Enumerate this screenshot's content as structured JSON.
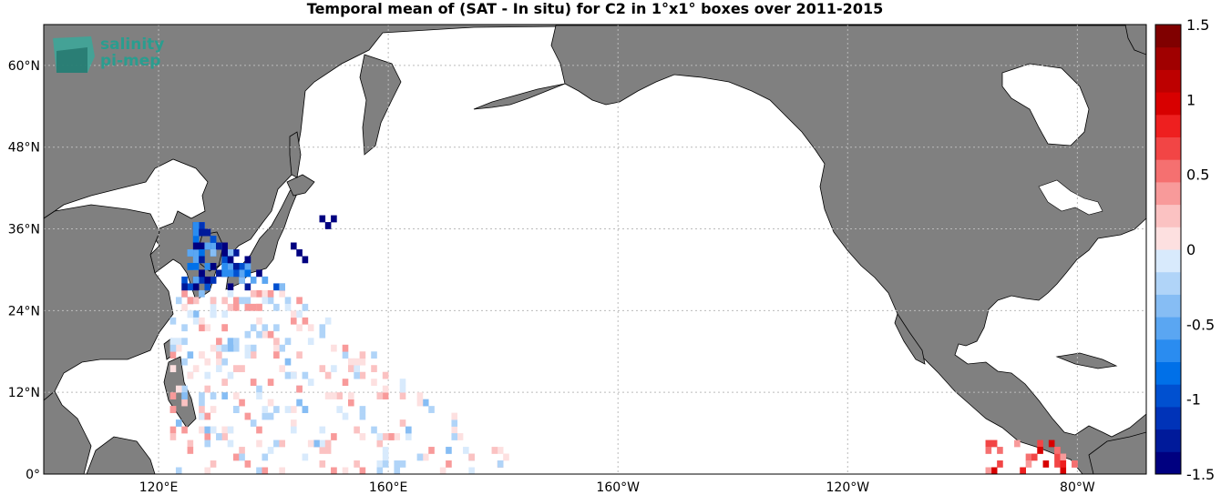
{
  "title": "Temporal mean of (SAT - In situ) for C2 in 1°x1° boxes over 2011-2015",
  "logo": {
    "line1": "salinity",
    "line2": "pi-mep"
  },
  "map": {
    "lon_ticks": [
      {
        "lon": 120,
        "label": "120°E"
      },
      {
        "lon": 160,
        "label": "160°E"
      },
      {
        "lon": 200,
        "label": "160°W"
      },
      {
        "lon": 240,
        "label": "120°W"
      },
      {
        "lon": 280,
        "label": "80°W"
      }
    ],
    "lat_ticks": [
      {
        "lat": 0,
        "label": "0°"
      },
      {
        "lat": 12,
        "label": "12°N"
      },
      {
        "lat": 24,
        "label": "24°N"
      },
      {
        "lat": 36,
        "label": "36°N"
      },
      {
        "lat": 48,
        "label": "48°N"
      },
      {
        "lat": 60,
        "label": "60°N"
      }
    ],
    "lon_range": [
      100,
      292
    ],
    "lat_range": [
      0,
      66
    ],
    "land_color": "#808080",
    "ocean_color": "#ffffff"
  },
  "colorbar": {
    "range": [
      -1.5,
      1.5
    ],
    "labels": [
      "1.5",
      "1",
      "0.5",
      "0",
      "-0.5",
      "-1",
      "-1.5"
    ]
  }
}
